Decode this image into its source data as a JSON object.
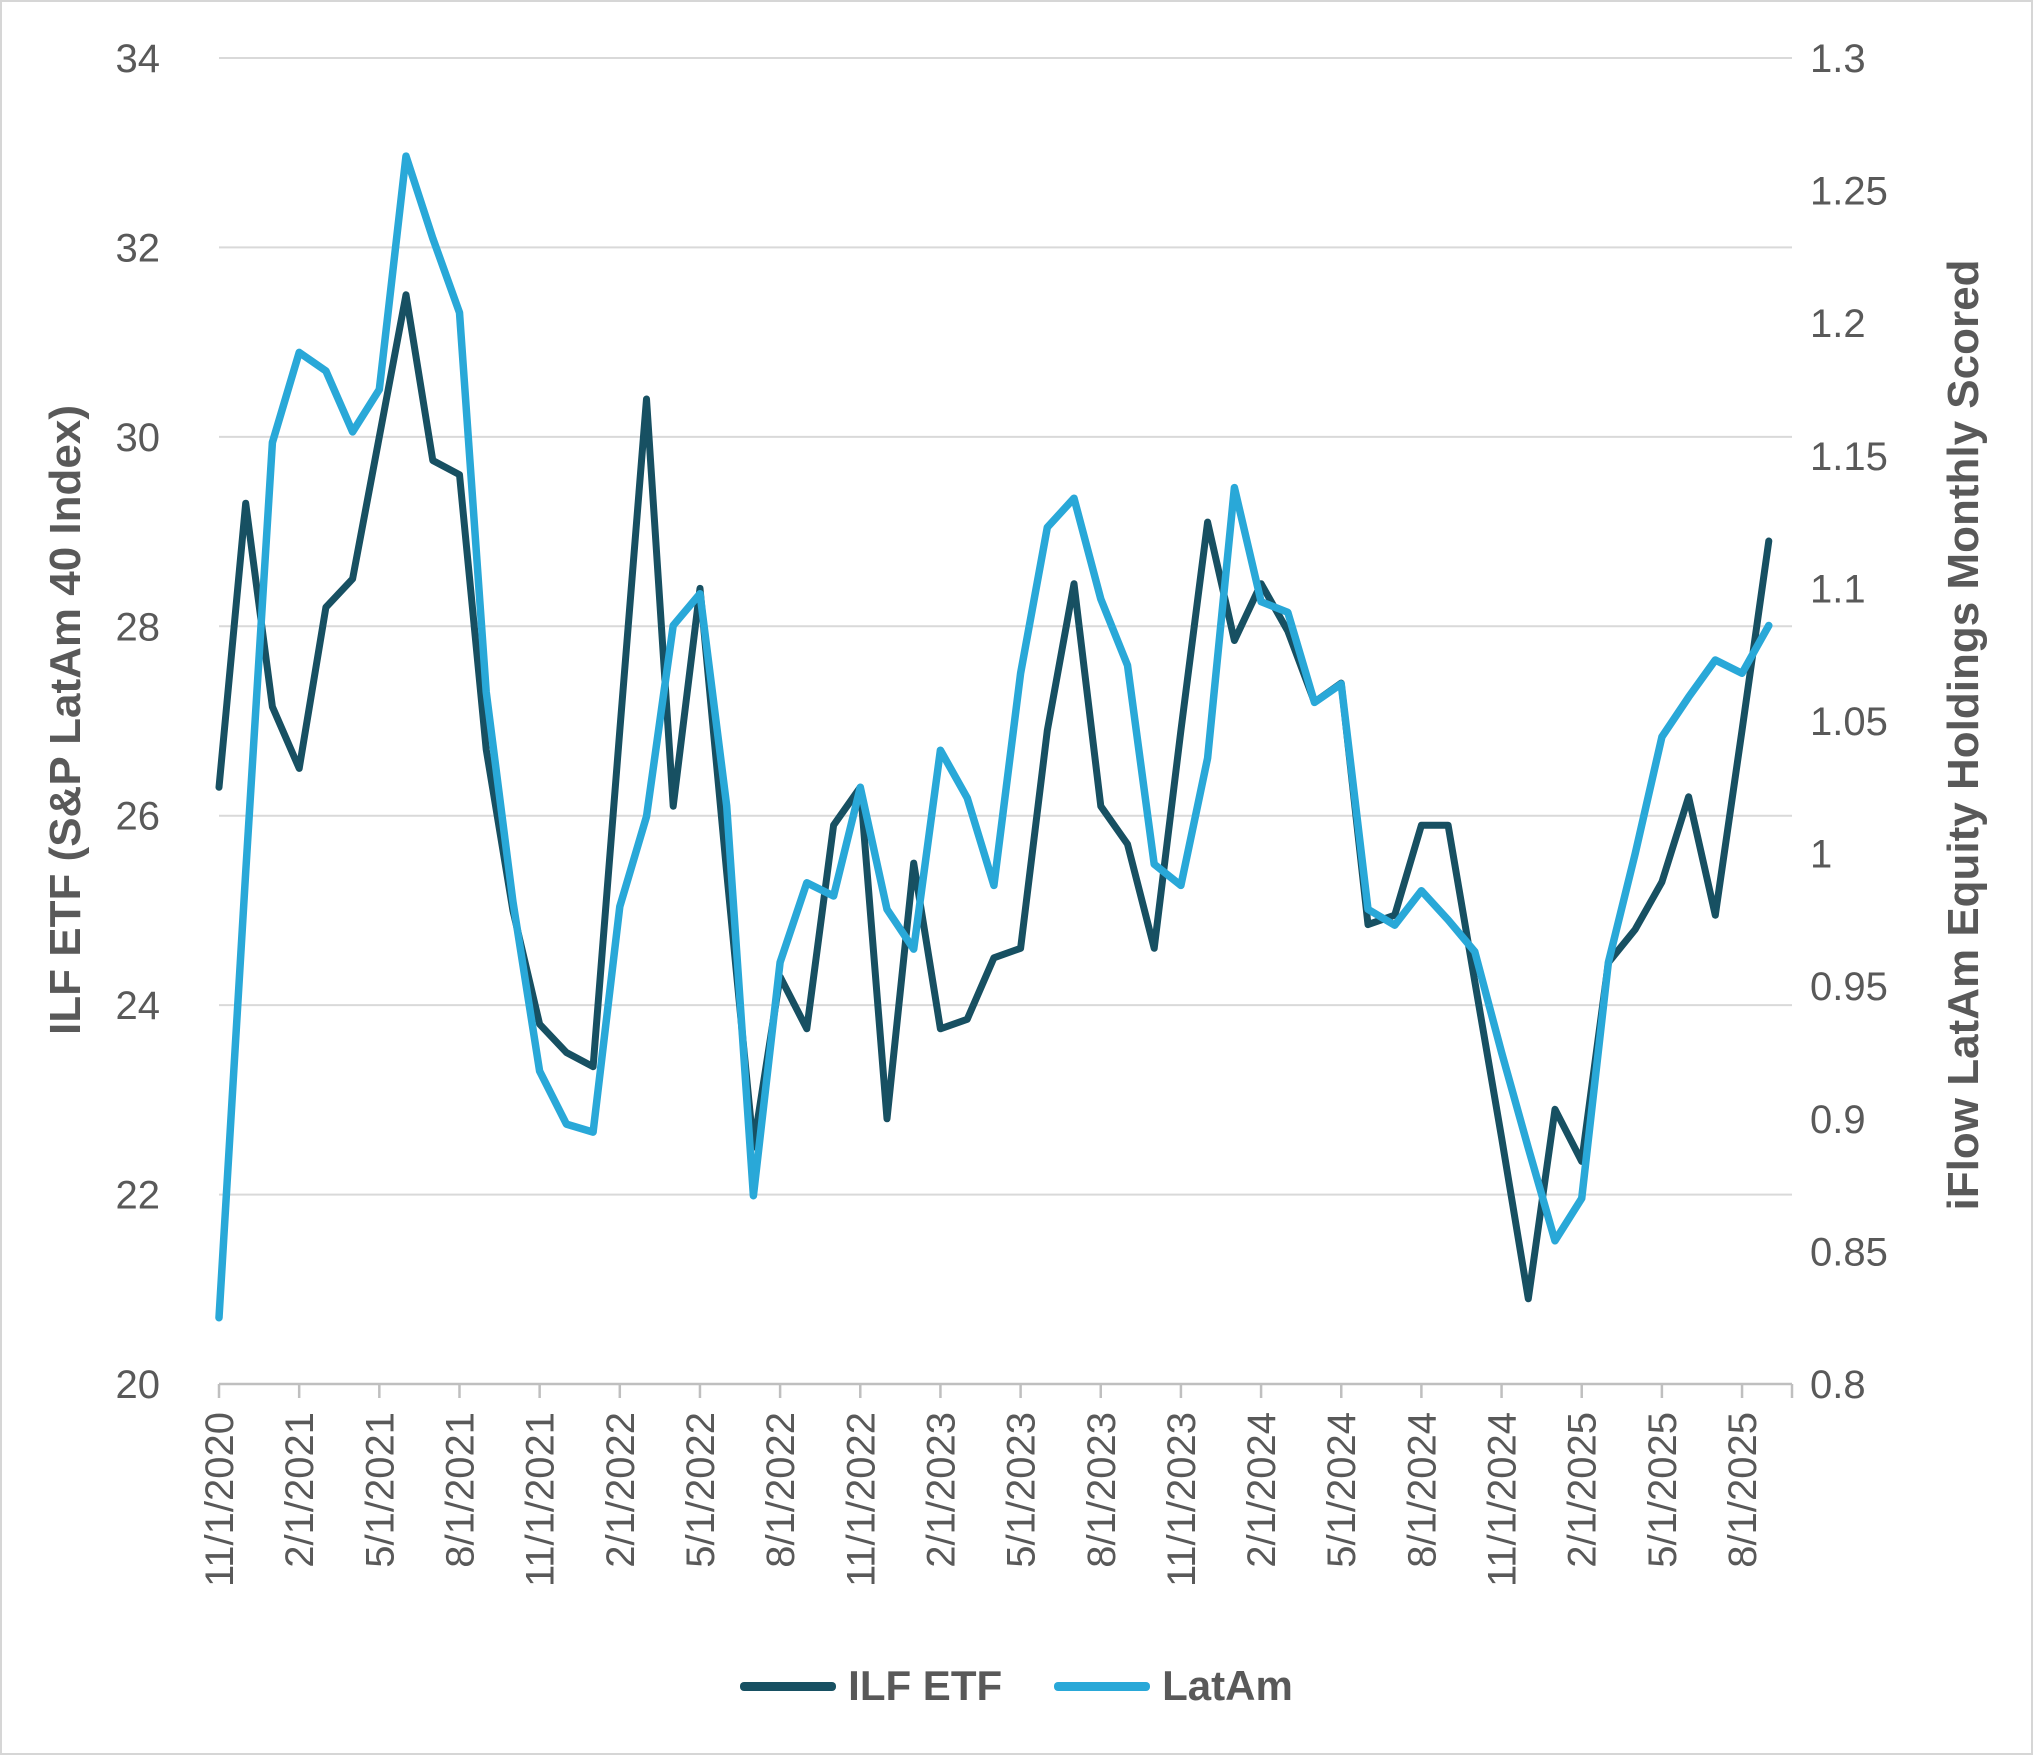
{
  "chart_data": {
    "type": "line",
    "title": "",
    "grid": true,
    "legend_position": "bottom",
    "categories": [
      "11/1/2020",
      "12/1/2020",
      "1/1/2021",
      "2/1/2021",
      "3/1/2021",
      "4/1/2021",
      "5/1/2021",
      "6/1/2021",
      "7/1/2021",
      "8/1/2021",
      "9/1/2021",
      "10/1/2021",
      "11/1/2021",
      "12/1/2021",
      "1/1/2022",
      "2/1/2022",
      "3/1/2022",
      "4/1/2022",
      "5/1/2022",
      "6/1/2022",
      "7/1/2022",
      "8/1/2022",
      "9/1/2022",
      "10/1/2022",
      "11/1/2022",
      "12/1/2022",
      "1/1/2023",
      "2/1/2023",
      "3/1/2023",
      "4/1/2023",
      "5/1/2023",
      "6/1/2023",
      "7/1/2023",
      "8/1/2023",
      "9/1/2023",
      "10/1/2023",
      "11/1/2023",
      "12/1/2023",
      "1/1/2024",
      "2/1/2024",
      "3/1/2024",
      "4/1/2024",
      "5/1/2024",
      "6/1/2024",
      "7/1/2024",
      "8/1/2024",
      "9/1/2024",
      "10/1/2024",
      "11/1/2024",
      "12/1/2024",
      "1/1/2025",
      "2/1/2025",
      "3/1/2025",
      "4/1/2025",
      "5/1/2025",
      "6/1/2025",
      "7/1/2025",
      "8/1/2025",
      "9/1/2025"
    ],
    "x_axis": {
      "tick_label_every": 3,
      "tick_labels": [
        "11/1/2020",
        "2/1/2021",
        "5/1/2021",
        "8/1/2021",
        "11/1/2021",
        "2/1/2022",
        "5/1/2022",
        "8/1/2022",
        "11/1/2022",
        "2/1/2023",
        "5/1/2023",
        "8/1/2023",
        "11/1/2023",
        "2/1/2024",
        "5/1/2024",
        "8/1/2024",
        "11/1/2024",
        "2/1/2025",
        "5/1/2025",
        "8/1/2025"
      ]
    },
    "left_axis": {
      "title": "ILF ETF (S&P LatAm 40 Index)",
      "min": 20,
      "max": 34,
      "step": 2
    },
    "right_axis": {
      "title": "iFlow LatAm Equity Holdings Monthly Scored",
      "min": 0.8,
      "max": 1.3,
      "step": 0.05
    },
    "series": [
      {
        "name": "ILF ETF",
        "axis": "left",
        "color": "#175062",
        "values": [
          26.3,
          29.3,
          27.15,
          26.5,
          28.2,
          28.5,
          30.0,
          31.5,
          29.75,
          29.6,
          26.7,
          25.0,
          23.8,
          23.5,
          23.35,
          26.9,
          30.4,
          26.1,
          28.4,
          25.4,
          22.5,
          24.3,
          23.75,
          25.9,
          26.3,
          22.8,
          25.5,
          23.75,
          23.85,
          24.5,
          24.6,
          26.9,
          28.45,
          26.1,
          25.7,
          24.6,
          26.9,
          29.1,
          27.85,
          28.45,
          27.95,
          27.2,
          27.4,
          24.85,
          24.95,
          25.9,
          25.9,
          24.25,
          22.6,
          20.9,
          22.9,
          22.35,
          24.45,
          24.8,
          25.3,
          26.2,
          24.95,
          26.9,
          28.9
        ]
      },
      {
        "name": "LatAm",
        "axis": "right",
        "color": "#29a8d8",
        "values": [
          0.825,
          0.993,
          1.155,
          1.189,
          1.182,
          1.159,
          1.175,
          1.263,
          1.232,
          1.204,
          1.061,
          0.982,
          0.918,
          0.898,
          0.895,
          0.98,
          1.014,
          1.086,
          1.098,
          1.018,
          0.871,
          0.959,
          0.989,
          0.984,
          1.025,
          0.979,
          0.964,
          1.039,
          1.021,
          0.988,
          1.068,
          1.123,
          1.134,
          1.096,
          1.071,
          0.996,
          0.988,
          1.036,
          1.138,
          1.095,
          1.091,
          1.057,
          1.064,
          0.979,
          0.973,
          0.986,
          0.975,
          0.963,
          0.925,
          0.889,
          0.854,
          0.87,
          0.959,
          1.0,
          1.044,
          1.059,
          1.073,
          1.068,
          1.086
        ]
      }
    ]
  },
  "style_colors": {
    "gridline": "#d9d9d9",
    "axis_line": "#bfbfbf",
    "tick_text": "#595959"
  }
}
